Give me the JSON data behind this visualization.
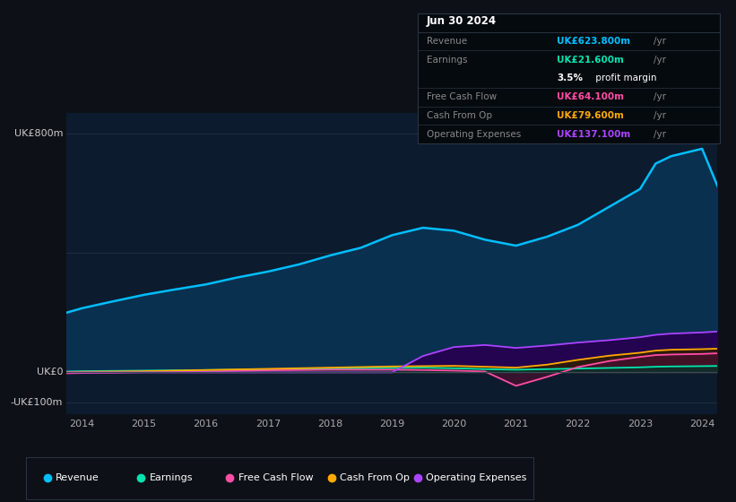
{
  "bg_color": "#0d1117",
  "plot_bg_color": "#0d1b2e",
  "years": [
    2013.75,
    2014,
    2014.5,
    2015,
    2015.5,
    2016,
    2016.5,
    2017,
    2017.5,
    2018,
    2018.5,
    2019,
    2019.5,
    2020,
    2020.5,
    2021,
    2021.5,
    2022,
    2022.5,
    2023,
    2023.25,
    2023.5,
    2024,
    2024.25
  ],
  "revenue": [
    200,
    215,
    238,
    260,
    278,
    295,
    318,
    338,
    362,
    392,
    418,
    460,
    485,
    475,
    445,
    425,
    455,
    495,
    555,
    615,
    700,
    725,
    750,
    624
  ],
  "earnings": [
    3,
    4,
    5,
    6,
    7,
    8,
    9,
    10,
    11,
    13,
    14,
    15,
    16,
    14,
    11,
    9,
    11,
    13,
    15,
    17,
    19,
    20,
    21,
    21.6
  ],
  "free_cash_flow": [
    -3,
    -2,
    -1,
    1,
    2,
    3,
    5,
    7,
    8,
    9,
    9,
    9,
    8,
    6,
    3,
    -45,
    -15,
    18,
    38,
    52,
    58,
    60,
    62,
    64.1
  ],
  "cash_from_op": [
    1,
    2,
    3,
    4,
    6,
    8,
    10,
    12,
    14,
    16,
    18,
    20,
    21,
    22,
    19,
    16,
    26,
    42,
    56,
    66,
    73,
    76,
    78,
    79.6
  ],
  "operating_expenses": [
    0,
    0,
    0,
    0,
    0,
    0,
    0,
    0,
    0,
    0,
    0,
    0,
    55,
    85,
    92,
    82,
    90,
    100,
    108,
    118,
    126,
    130,
    134,
    137.1
  ],
  "revenue_color": "#00bfff",
  "earnings_color": "#00e5b0",
  "fcf_color": "#ff4da6",
  "cashop_color": "#ffaa00",
  "opex_color": "#aa44ff",
  "revenue_fill": "#0a3050",
  "earnings_fill": "#003828",
  "fcf_fill": "#4a1030",
  "cashop_fill": "#332000",
  "opex_fill": "#280050",
  "ylim_min": -140,
  "ylim_max": 870,
  "yticks": [
    800,
    400,
    0,
    -100
  ],
  "ytick_labels": [
    "UK£800m",
    "",
    "UK£0",
    "-UK£100m"
  ],
  "xticks": [
    2014,
    2015,
    2016,
    2017,
    2018,
    2019,
    2020,
    2021,
    2022,
    2023,
    2024
  ],
  "info_box": {
    "date": "Jun 30 2024",
    "rows": [
      {
        "label": "Revenue",
        "val": "UK£623.800m",
        "suffix": "/yr",
        "val_color": "#00bfff",
        "extra": null
      },
      {
        "label": "Earnings",
        "val": "UK£21.600m",
        "suffix": "/yr",
        "val_color": "#00e5b0",
        "extra": "3.5% profit margin"
      },
      {
        "label": "Free Cash Flow",
        "val": "UK£64.100m",
        "suffix": "/yr",
        "val_color": "#ff4da6",
        "extra": null
      },
      {
        "label": "Cash From Op",
        "val": "UK£79.600m",
        "suffix": "/yr",
        "val_color": "#ffaa00",
        "extra": null
      },
      {
        "label": "Operating Expenses",
        "val": "UK£137.100m",
        "suffix": "/yr",
        "val_color": "#aa44ff",
        "extra": null
      }
    ]
  },
  "legend_items": [
    {
      "label": "Revenue",
      "color": "#00bfff"
    },
    {
      "label": "Earnings",
      "color": "#00e5b0"
    },
    {
      "label": "Free Cash Flow",
      "color": "#ff4da6"
    },
    {
      "label": "Cash From Op",
      "color": "#ffaa00"
    },
    {
      "label": "Operating Expenses",
      "color": "#aa44ff"
    }
  ]
}
